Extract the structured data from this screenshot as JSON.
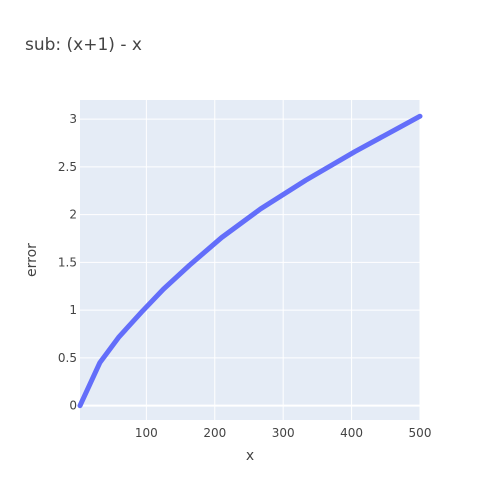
{
  "chart_data": {
    "type": "line",
    "title": "sub: (x+1) - x",
    "xlabel": "x",
    "ylabel": "error",
    "xlim": [
      3,
      500
    ],
    "ylim": [
      -0.15,
      3.2
    ],
    "xticks": [
      100,
      200,
      300,
      400,
      500
    ],
    "yticks": [
      0,
      0.5,
      1,
      1.5,
      2,
      2.5,
      3
    ],
    "ytick_labels": [
      "0",
      "0.5",
      "1",
      "1.5",
      "2",
      "2.5",
      "3"
    ],
    "grid": true,
    "colors": {
      "plot_bg": "#E5ECF6",
      "line": "#636EFA",
      "grid": "#ffffff",
      "text": "#444444"
    },
    "series": [
      {
        "values_x": [
          3,
          32,
          60,
          93,
          125,
          163,
          210,
          267,
          333,
          405,
          500
        ],
        "values_y": [
          0,
          0.45,
          0.72,
          0.98,
          1.22,
          1.47,
          1.76,
          2.06,
          2.36,
          2.66,
          3.03
        ]
      }
    ]
  }
}
